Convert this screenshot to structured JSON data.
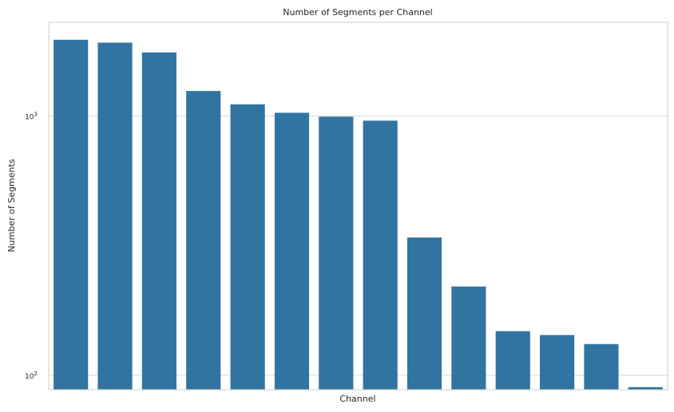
{
  "chart_data": {
    "type": "bar",
    "title": "Number of Segments per Channel",
    "xlabel": "Channel",
    "ylabel": "Number of Segments",
    "yscale": "log",
    "ylim": [
      88,
      2300
    ],
    "yticks": [
      {
        "value": 100,
        "base": "10",
        "exp": "2"
      },
      {
        "value": 1000,
        "base": "10",
        "exp": "3"
      }
    ],
    "grid": "horizontal",
    "categories": [
      "",
      "",
      "",
      "",
      "",
      "",
      "",
      "",
      "",
      "",
      "",
      "",
      "",
      ""
    ],
    "values": [
      1970,
      1920,
      1760,
      1250,
      1110,
      1030,
      995,
      960,
      340,
      220,
      148,
      143,
      132,
      90
    ],
    "colors": {
      "bar": "#3274a1",
      "grid": "#d9d9d9",
      "frame": "#cccccc",
      "text": "#262626"
    }
  }
}
